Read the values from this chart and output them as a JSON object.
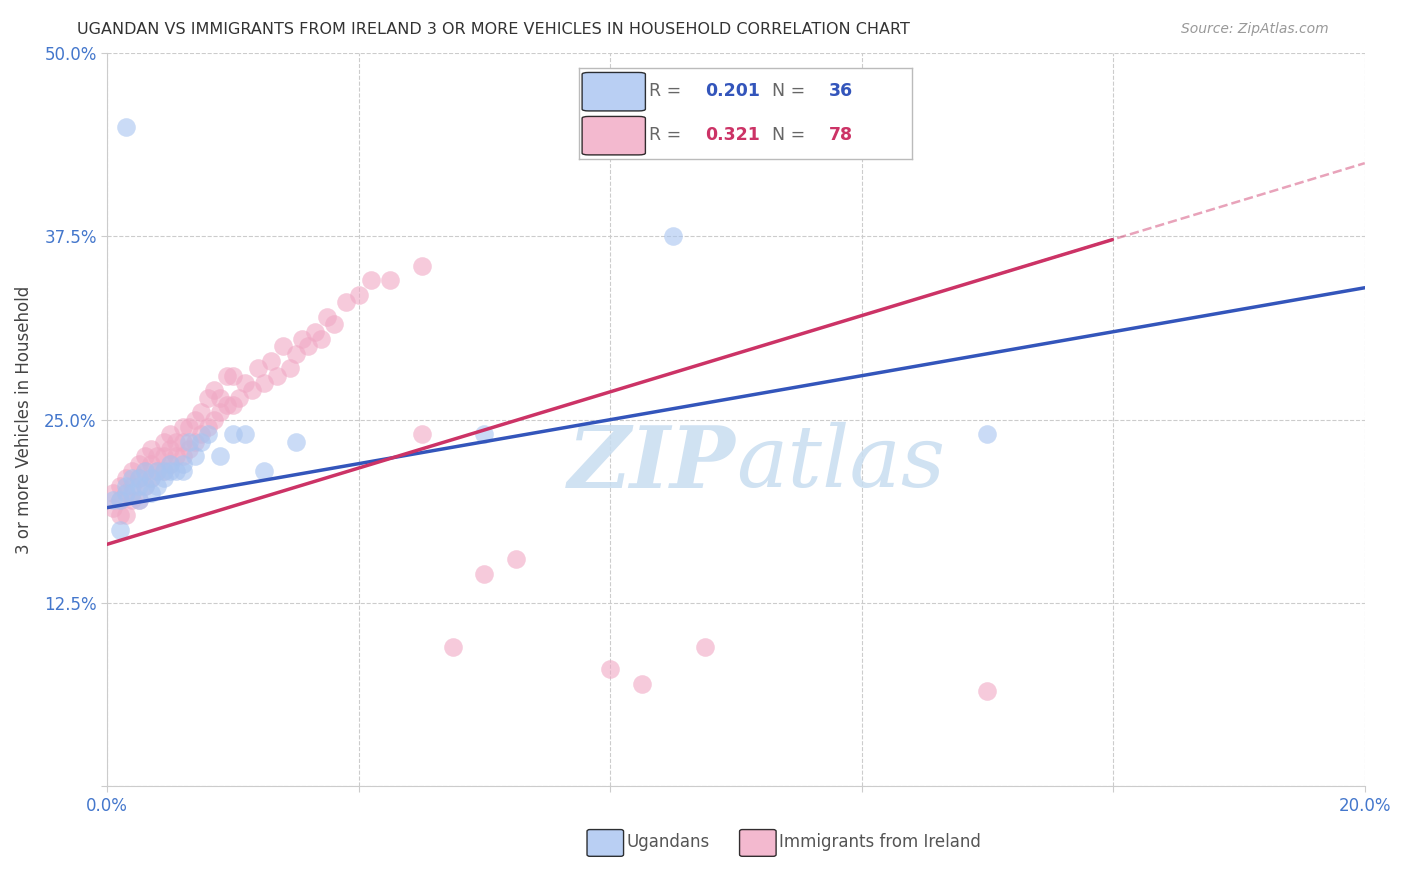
{
  "title": "UGANDAN VS IMMIGRANTS FROM IRELAND 3 OR MORE VEHICLES IN HOUSEHOLD CORRELATION CHART",
  "source": "Source: ZipAtlas.com",
  "ylabel": "3 or more Vehicles in Household",
  "xlim": [
    0.0,
    0.2
  ],
  "ylim": [
    0.0,
    0.5
  ],
  "xticks": [
    0.0,
    0.04,
    0.08,
    0.12,
    0.16,
    0.2
  ],
  "yticks": [
    0.0,
    0.125,
    0.25,
    0.375,
    0.5
  ],
  "xticklabels": [
    "0.0%",
    "",
    "",
    "",
    "",
    "20.0%"
  ],
  "yticklabels": [
    "",
    "12.5%",
    "25.0%",
    "37.5%",
    "50.0%"
  ],
  "blue_R": 0.201,
  "blue_N": 36,
  "pink_R": 0.321,
  "pink_N": 78,
  "blue_color": "#a8c4f0",
  "pink_color": "#f0a8c4",
  "blue_line_color": "#3355bb",
  "pink_line_color": "#cc3366",
  "tick_color": "#4477cc",
  "grid_color": "#cccccc",
  "watermark_color": "#c8ddf0",
  "blue_x": [
    0.001,
    0.002,
    0.002,
    0.003,
    0.003,
    0.004,
    0.004,
    0.005,
    0.005,
    0.005,
    0.006,
    0.006,
    0.007,
    0.007,
    0.008,
    0.008,
    0.009,
    0.009,
    0.01,
    0.01,
    0.011,
    0.012,
    0.012,
    0.013,
    0.014,
    0.015,
    0.016,
    0.018,
    0.02,
    0.022,
    0.025,
    0.03,
    0.06,
    0.09,
    0.14,
    0.003
  ],
  "blue_y": [
    0.195,
    0.175,
    0.195,
    0.2,
    0.205,
    0.21,
    0.2,
    0.195,
    0.205,
    0.21,
    0.205,
    0.215,
    0.2,
    0.21,
    0.205,
    0.215,
    0.21,
    0.215,
    0.22,
    0.215,
    0.215,
    0.22,
    0.215,
    0.235,
    0.225,
    0.235,
    0.24,
    0.225,
    0.24,
    0.24,
    0.215,
    0.235,
    0.24,
    0.375,
    0.24,
    0.45
  ],
  "pink_x": [
    0.001,
    0.001,
    0.002,
    0.002,
    0.002,
    0.003,
    0.003,
    0.003,
    0.004,
    0.004,
    0.004,
    0.005,
    0.005,
    0.005,
    0.006,
    0.006,
    0.006,
    0.007,
    0.007,
    0.007,
    0.008,
    0.008,
    0.009,
    0.009,
    0.009,
    0.01,
    0.01,
    0.01,
    0.011,
    0.011,
    0.012,
    0.012,
    0.012,
    0.013,
    0.013,
    0.014,
    0.014,
    0.015,
    0.015,
    0.016,
    0.016,
    0.017,
    0.017,
    0.018,
    0.018,
    0.019,
    0.019,
    0.02,
    0.02,
    0.021,
    0.022,
    0.023,
    0.024,
    0.025,
    0.026,
    0.027,
    0.028,
    0.029,
    0.03,
    0.031,
    0.032,
    0.033,
    0.034,
    0.035,
    0.036,
    0.038,
    0.04,
    0.042,
    0.045,
    0.05,
    0.055,
    0.06,
    0.065,
    0.08,
    0.085,
    0.095,
    0.14,
    0.05
  ],
  "pink_y": [
    0.19,
    0.2,
    0.185,
    0.195,
    0.205,
    0.185,
    0.2,
    0.21,
    0.195,
    0.205,
    0.215,
    0.195,
    0.21,
    0.22,
    0.205,
    0.215,
    0.225,
    0.21,
    0.22,
    0.23,
    0.215,
    0.225,
    0.215,
    0.225,
    0.235,
    0.22,
    0.23,
    0.24,
    0.225,
    0.235,
    0.225,
    0.235,
    0.245,
    0.23,
    0.245,
    0.235,
    0.25,
    0.24,
    0.255,
    0.245,
    0.265,
    0.25,
    0.27,
    0.255,
    0.265,
    0.26,
    0.28,
    0.26,
    0.28,
    0.265,
    0.275,
    0.27,
    0.285,
    0.275,
    0.29,
    0.28,
    0.3,
    0.285,
    0.295,
    0.305,
    0.3,
    0.31,
    0.305,
    0.32,
    0.315,
    0.33,
    0.335,
    0.345,
    0.345,
    0.355,
    0.095,
    0.145,
    0.155,
    0.08,
    0.07,
    0.095,
    0.065,
    0.24
  ]
}
